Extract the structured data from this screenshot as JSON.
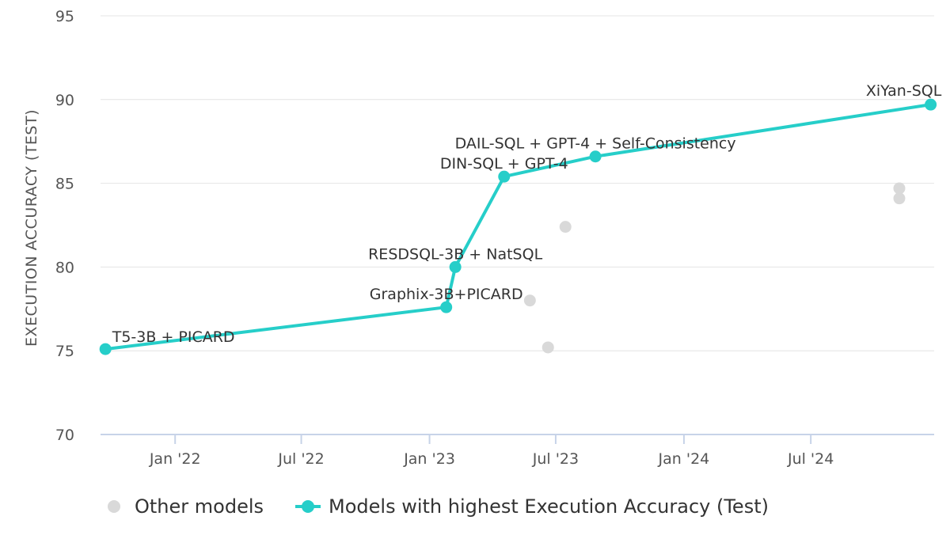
{
  "chart_data": {
    "type": "scatter",
    "title": "",
    "xlabel": "",
    "ylabel": "EXECUTION ACCURACY (TEST)",
    "ylim": [
      70,
      95
    ],
    "yticks": [
      70,
      75,
      80,
      85,
      90,
      95
    ],
    "xlim": [
      "2021-09-16",
      "2024-12-25"
    ],
    "xticks": [
      {
        "date": "2022-01-01",
        "label": "Jan '22"
      },
      {
        "date": "2022-07-01",
        "label": "Jul '22"
      },
      {
        "date": "2023-01-01",
        "label": "Jan '23"
      },
      {
        "date": "2023-07-01",
        "label": "Jul '23"
      },
      {
        "date": "2024-01-01",
        "label": "Jan '24"
      },
      {
        "date": "2024-07-01",
        "label": "Jul '24"
      }
    ],
    "grid": true,
    "legend_position": "bottom-left",
    "series": [
      {
        "name": "Other models",
        "color": "#d9d9d9",
        "kind": "scatter",
        "points": [
          {
            "date": "2023-05-25",
            "y": 78.0
          },
          {
            "date": "2023-06-20",
            "y": 75.2
          },
          {
            "date": "2023-07-15",
            "y": 82.4
          },
          {
            "date": "2024-11-05",
            "y": 84.7
          },
          {
            "date": "2024-11-05",
            "y": 84.1
          }
        ]
      },
      {
        "name": "Models with highest Execution Accuracy (Test)",
        "color": "#26cec9",
        "kind": "line",
        "points": [
          {
            "date": "2021-09-23",
            "y": 75.1,
            "label": "T5-3B + PICARD"
          },
          {
            "date": "2023-01-25",
            "y": 77.6,
            "label": "Graphix-3B+PICARD"
          },
          {
            "date": "2023-02-07",
            "y": 80.0,
            "label": "RESDSQL-3B + NatSQL"
          },
          {
            "date": "2023-04-18",
            "y": 85.4,
            "label": "DIN-SQL + GPT-4"
          },
          {
            "date": "2023-08-27",
            "y": 86.6,
            "label": "DAIL-SQL + GPT-4 + Self-Consistency"
          },
          {
            "date": "2024-12-20",
            "y": 89.7,
            "label": "XiYan-SQL"
          }
        ]
      }
    ]
  },
  "legend": {
    "other_label": "Other models",
    "best_label": "Models with highest Execution Accuracy (Test)"
  }
}
